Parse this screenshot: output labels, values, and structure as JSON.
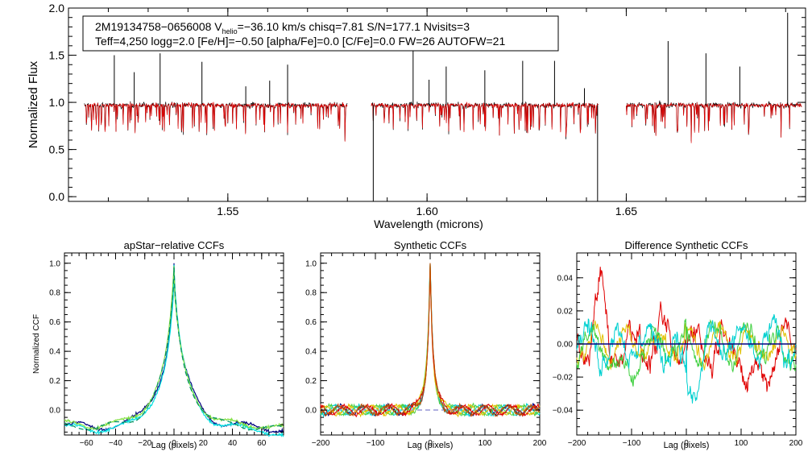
{
  "chart_data": [
    {
      "type": "line",
      "id": "spectrum",
      "xlabel": "Wavelength (microns)",
      "ylabel": "Normalized Flux",
      "xlim": [
        1.51,
        1.695
      ],
      "ylim": [
        -0.05,
        2.0
      ],
      "xticks": [
        1.55,
        1.6,
        1.65
      ],
      "xtick_labels": [
        "1.55",
        "1.60",
        "1.65"
      ],
      "yticks": [
        0.0,
        0.5,
        1.0,
        1.5,
        2.0
      ],
      "ytick_labels": [
        "0.0",
        "0.5",
        "1.0",
        "1.5",
        "2.0"
      ],
      "chips": [
        [
          1.514,
          1.58
        ],
        [
          1.586,
          1.643
        ],
        [
          1.65,
          1.694
        ]
      ],
      "series": [
        {
          "name": "observed",
          "color": "#000000",
          "continuum": 0.97
        },
        {
          "name": "model",
          "color": "#e00000",
          "continuum": 0.97
        }
      ],
      "emission_spikes": [
        [
          1.5215,
          1.5
        ],
        [
          1.5265,
          1.32
        ],
        [
          1.533,
          1.52
        ],
        [
          1.5435,
          1.43
        ],
        [
          1.5545,
          1.17
        ],
        [
          1.5605,
          1.23
        ],
        [
          1.565,
          1.4
        ],
        [
          1.5965,
          1.55
        ],
        [
          1.6005,
          1.24
        ],
        [
          1.6048,
          1.38
        ],
        [
          1.6145,
          1.34
        ],
        [
          1.624,
          1.44
        ],
        [
          1.632,
          1.44
        ],
        [
          1.6395,
          1.15
        ],
        [
          1.6605,
          1.65
        ],
        [
          1.67,
          1.52
        ],
        [
          1.6785,
          1.38
        ],
        [
          1.6905,
          1.95
        ]
      ],
      "absorption_spikes": [
        [
          1.5865,
          -0.05
        ],
        [
          1.6428,
          -0.05
        ]
      ],
      "annotation": {
        "line1_a": "2M19134758−0656008  V",
        "line1_sub": "helio",
        "line1_b": "=−36.10 km/s  chisq=7.81  S/N=177.1  Nvisits=3",
        "line2": "Teff=4,250 logg=2.0 [Fe/H]=−0.50 [alpha/Fe]=0.0 [C/Fe]=0.0 FW=26 AUTOFW=21"
      }
    },
    {
      "type": "line",
      "id": "apstar_ccf",
      "title": "apStar−relative CCFs",
      "xlabel": "Lag (pixels)",
      "ylabel": "Normalized CCF",
      "xlim": [
        -75,
        75
      ],
      "ylim": [
        -0.17,
        1.07
      ],
      "xticks": [
        -60,
        -40,
        -20,
        0,
        20,
        40,
        60
      ],
      "xtick_labels": [
        "−60",
        "−40",
        "−20",
        "0",
        "20",
        "40",
        "60"
      ],
      "yticks": [
        0.0,
        0.2,
        0.4,
        0.6,
        0.8,
        1.0
      ],
      "ytick_labels": [
        "0.0",
        "0.2",
        "0.4",
        "0.6",
        "0.8",
        "1.0"
      ],
      "series": [
        {
          "name": "ccf-1",
          "color": "#000080"
        },
        {
          "name": "ccf-2",
          "color": "#00e0e0"
        },
        {
          "name": "ccf-3",
          "color": "#80e040"
        },
        {
          "name": "ccf-4",
          "color": "#009060",
          "dashed": true
        }
      ]
    },
    {
      "type": "line",
      "id": "synthetic_ccf",
      "title": "Synthetic CCFs",
      "xlabel": "Lag (pixels)",
      "ylabel": "",
      "xlim": [
        -200,
        200
      ],
      "ylim": [
        -0.17,
        1.07
      ],
      "xticks": [
        -200,
        -100,
        0,
        100,
        200
      ],
      "xtick_labels": [
        "−200",
        "−100",
        "0",
        "100",
        "200"
      ],
      "yticks": [
        0.0,
        0.2,
        0.4,
        0.6,
        0.8,
        1.0
      ],
      "ytick_labels": [
        "0.0",
        "0.2",
        "0.4",
        "0.6",
        "0.8",
        "1.0"
      ],
      "series": [
        {
          "name": "ccf-1",
          "color": "#000080"
        },
        {
          "name": "ccf-2",
          "color": "#00d0d0"
        },
        {
          "name": "ccf-3",
          "color": "#50d040"
        },
        {
          "name": "ccf-4",
          "color": "#e0c000"
        },
        {
          "name": "ccf-5",
          "color": "#e00000"
        },
        {
          "name": "ccf-6",
          "color": "#c05000"
        }
      ],
      "zero_line": {
        "color": "#6060c0",
        "dashed": true
      }
    },
    {
      "type": "line",
      "id": "diff_ccf",
      "title": "Difference Synthetic CCFs",
      "xlabel": "Lag (pixels)",
      "ylabel": "",
      "xlim": [
        -200,
        200
      ],
      "ylim": [
        -0.055,
        0.055
      ],
      "xticks": [
        -200,
        -100,
        0,
        100,
        200
      ],
      "xtick_labels": [
        "−200",
        "−100",
        "0",
        "100",
        "200"
      ],
      "yticks": [
        -0.04,
        -0.02,
        0.0,
        0.02,
        0.04
      ],
      "ytick_labels": [
        "−0.04",
        "−0.02",
        "0.00",
        "0.02",
        "0.04"
      ],
      "series": [
        {
          "name": "diff-1",
          "color": "#e00000"
        },
        {
          "name": "diff-2",
          "color": "#e0c000"
        },
        {
          "name": "diff-3",
          "color": "#40d040"
        },
        {
          "name": "diff-4",
          "color": "#00d0d0"
        },
        {
          "name": "zero",
          "color": "#000080"
        }
      ]
    }
  ]
}
